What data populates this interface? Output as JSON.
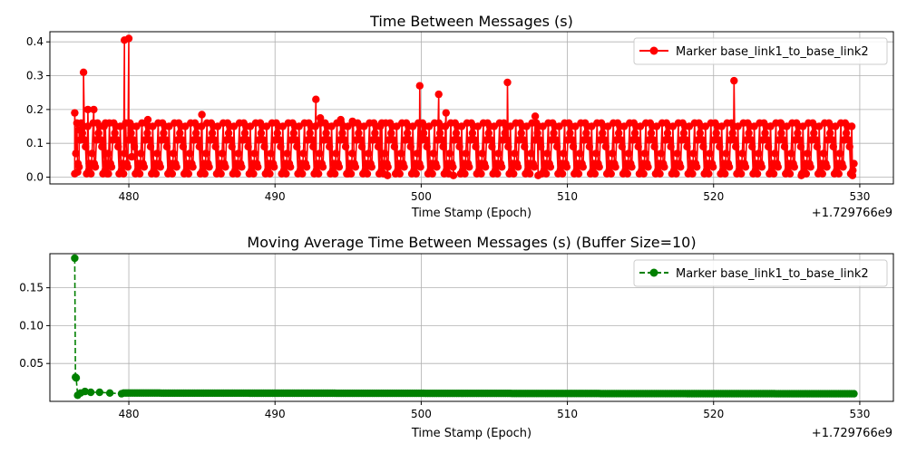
{
  "chart_data": [
    {
      "type": "line",
      "title": "Time Between Messages (s)",
      "xlabel": "Time Stamp (Epoch)",
      "ylabel": "",
      "x_offset_label": "+1.729766e9",
      "xlim": [
        474.6,
        532.3
      ],
      "ylim": [
        -0.02,
        0.43
      ],
      "x_ticks": [
        480,
        490,
        500,
        510,
        520,
        530
      ],
      "x_tick_labels": [
        "480",
        "490",
        "500",
        "510",
        "520",
        "530"
      ],
      "y_ticks": [
        0.0,
        0.1,
        0.2,
        0.3,
        0.4
      ],
      "y_tick_labels": [
        "0.0",
        "0.1",
        "0.2",
        "0.3",
        "0.4"
      ],
      "grid": true,
      "legend_position": "top-right",
      "series": [
        {
          "name": "Marker base_link1_to_base_link2",
          "color": "#ff0000",
          "line_style": "solid",
          "marker": "circle",
          "peaks": [
            [
              476.3,
              0.19
            ],
            [
              476.5,
              0.015
            ],
            [
              476.6,
              0.14
            ],
            [
              476.9,
              0.31
            ],
            [
              477.2,
              0.2
            ],
            [
              477.3,
              0.04
            ],
            [
              477.6,
              0.2
            ],
            [
              478.4,
              0.16
            ],
            [
              478.6,
              0.01
            ],
            [
              479.7,
              0.405
            ],
            [
              480.0,
              0.41
            ],
            [
              480.2,
              0.06
            ],
            [
              481.3,
              0.17
            ],
            [
              485.0,
              0.185
            ],
            [
              489.0,
              0.16
            ],
            [
              492.8,
              0.23
            ],
            [
              493.1,
              0.175
            ],
            [
              494.5,
              0.17
            ],
            [
              495.0,
              0.01
            ],
            [
              495.3,
              0.165
            ],
            [
              497.3,
              0.16
            ],
            [
              497.7,
              0.005
            ],
            [
              499.9,
              0.27
            ],
            [
              501.2,
              0.245
            ],
            [
              501.7,
              0.19
            ],
            [
              502.2,
              0.005
            ],
            [
              505.9,
              0.28
            ],
            [
              507.8,
              0.18
            ],
            [
              508.0,
              0.005
            ],
            [
              521.4,
              0.285
            ],
            [
              523.9,
              0.15
            ],
            [
              524.6,
              0.16
            ],
            [
              526.0,
              0.005
            ],
            [
              529.2,
              0.15
            ],
            [
              529.5,
              0.005
            ]
          ],
          "band": {
            "x_start": 476.3,
            "x_end": 529.6,
            "values_cycle": [
              0.01,
              0.13,
              0.04,
              0.09,
              0.16,
              0.02,
              0.11,
              0.07,
              0.15,
              0.03
            ]
          }
        }
      ]
    },
    {
      "type": "line",
      "title": "Moving Average Time Between Messages (s) (Buffer Size=10)",
      "xlabel": "Time Stamp (Epoch)",
      "ylabel": "",
      "x_offset_label": "+1.729766e9",
      "xlim": [
        474.6,
        532.3
      ],
      "ylim": [
        0.0,
        0.195
      ],
      "x_ticks": [
        480,
        490,
        500,
        510,
        520,
        530
      ],
      "x_tick_labels": [
        "480",
        "490",
        "500",
        "510",
        "520",
        "530"
      ],
      "y_ticks": [
        0.05,
        0.1,
        0.15
      ],
      "y_tick_labels": [
        "0.05",
        "0.10",
        "0.15"
      ],
      "grid": true,
      "legend_position": "top-right",
      "series": [
        {
          "name": "Marker base_link1_to_base_link2",
          "color": "#008000",
          "line_style": "dashed",
          "marker": "circle",
          "x": [
            476.3,
            476.35,
            476.4,
            476.5,
            476.7,
            477.0,
            477.4,
            478.0,
            478.7,
            479.5
          ],
          "y": [
            0.189,
            0.032,
            0.031,
            0.008,
            0.011,
            0.013,
            0.012,
            0.012,
            0.011,
            0.01
          ],
          "tail": {
            "x_start": 479.5,
            "x_end": 529.6,
            "start_value": 0.011,
            "end_value": 0.01
          }
        }
      ]
    }
  ]
}
